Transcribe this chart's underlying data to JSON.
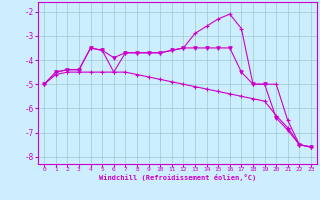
{
  "xlabel": "Windchill (Refroidissement éolien,°C)",
  "bg_color": "#cceeff",
  "line_color": "#cc00cc",
  "grid_color": "#99cccc",
  "x_ticks": [
    0,
    1,
    2,
    3,
    4,
    5,
    6,
    7,
    8,
    9,
    10,
    11,
    12,
    13,
    14,
    15,
    16,
    17,
    18,
    19,
    20,
    21,
    22,
    23
  ],
  "ylim": [
    -8.3,
    -1.6
  ],
  "yticks": [
    -8,
    -7,
    -6,
    -5,
    -4,
    -3,
    -2
  ],
  "line1": {
    "x": [
      0,
      1,
      2,
      3,
      4,
      5,
      6,
      7,
      8,
      9,
      10,
      11,
      12,
      13,
      14,
      15,
      16,
      17,
      18,
      19,
      20,
      21,
      22,
      23
    ],
    "y": [
      -5.0,
      -4.5,
      -4.4,
      -4.4,
      -3.5,
      -3.6,
      -4.5,
      -3.7,
      -3.7,
      -3.7,
      -3.7,
      -3.6,
      -3.5,
      -2.9,
      -2.6,
      -2.3,
      -2.1,
      -2.7,
      -5.0,
      -5.0,
      -5.0,
      -6.5,
      -7.5,
      -7.6
    ],
    "marker": "+"
  },
  "line2": {
    "x": [
      0,
      1,
      2,
      3,
      4,
      5,
      6,
      7,
      8,
      9,
      10,
      11,
      12,
      13,
      14,
      15,
      16,
      17,
      18,
      19,
      20,
      21,
      22,
      23
    ],
    "y": [
      -5.0,
      -4.5,
      -4.4,
      -4.4,
      -3.5,
      -3.6,
      -3.9,
      -3.7,
      -3.7,
      -3.7,
      -3.7,
      -3.6,
      -3.5,
      -3.5,
      -3.5,
      -3.5,
      -3.5,
      -4.5,
      -5.0,
      -5.0,
      -6.4,
      -6.9,
      -7.5,
      -7.6
    ],
    "marker": "v"
  },
  "line3": {
    "x": [
      0,
      1,
      2,
      3,
      4,
      5,
      6,
      7,
      8,
      9,
      10,
      11,
      12,
      13,
      14,
      15,
      16,
      17,
      18,
      19,
      20,
      21,
      22,
      23
    ],
    "y": [
      -5.0,
      -4.6,
      -4.5,
      -4.5,
      -4.5,
      -4.5,
      -4.5,
      -4.5,
      -4.6,
      -4.7,
      -4.8,
      -4.9,
      -5.0,
      -5.1,
      -5.2,
      -5.3,
      -5.4,
      -5.5,
      -5.6,
      -5.7,
      -6.3,
      -6.8,
      -7.5,
      -7.6
    ],
    "marker": "+"
  }
}
